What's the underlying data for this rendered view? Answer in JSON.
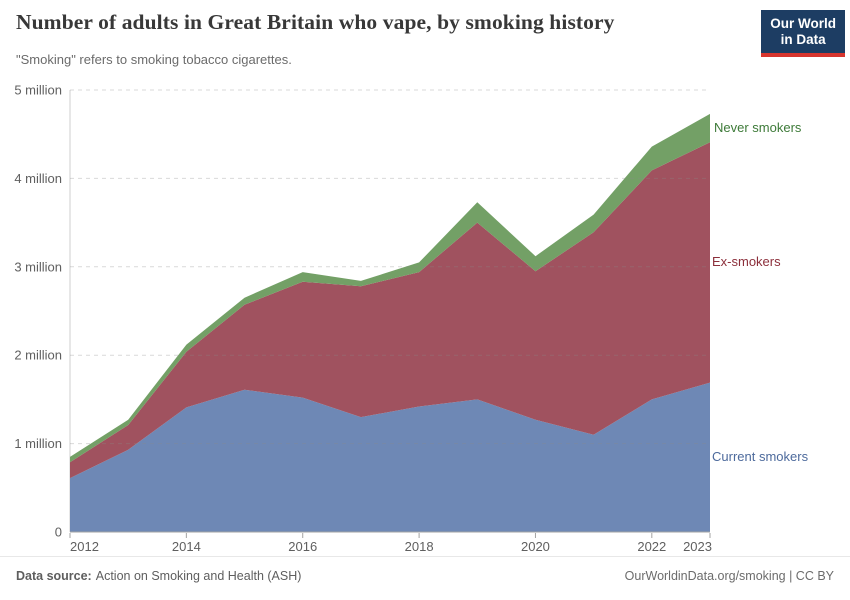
{
  "header": {
    "logo": {
      "line1": "Our World",
      "line2": "in Data"
    }
  },
  "footer": {
    "source_label": "Data source:",
    "source_value": "Action on Smoking and Health (ASH)",
    "credit": "OurWorldinData.org/smoking | CC BY"
  },
  "chart_data": {
    "type": "area",
    "stacked": true,
    "title": "Number of adults in Great Britain who vape, by smoking history",
    "subtitle": "\"Smoking\" refers to smoking tobacco cigarettes.",
    "unit": "adults (millions)",
    "x": [
      2012,
      2013,
      2014,
      2015,
      2016,
      2017,
      2018,
      2019,
      2020,
      2021,
      2022,
      2023
    ],
    "series": [
      {
        "name": "Current smokers",
        "color": "#6E88B5",
        "label_color": "#4D6A9C",
        "values": [
          0.61,
          0.93,
          1.41,
          1.61,
          1.52,
          1.3,
          1.42,
          1.5,
          1.27,
          1.1,
          1.5,
          1.69
        ]
      },
      {
        "name": "Ex-smokers",
        "color": "#A0525F",
        "label_color": "#8C2F3B",
        "values": [
          0.18,
          0.28,
          0.63,
          0.96,
          1.31,
          1.48,
          1.52,
          2.0,
          1.68,
          2.29,
          2.59,
          2.72
        ]
      },
      {
        "name": "Never smokers",
        "color": "#73A066",
        "label_color": "#3D7A38",
        "values": [
          0.06,
          0.06,
          0.08,
          0.08,
          0.11,
          0.06,
          0.11,
          0.23,
          0.17,
          0.2,
          0.27,
          0.32
        ]
      }
    ],
    "totals": [
      0.85,
      1.27,
      2.12,
      2.65,
      2.94,
      2.84,
      3.05,
      3.73,
      3.12,
      3.59,
      4.36,
      4.73
    ],
    "ylim": [
      0,
      5
    ],
    "yticks": [
      {
        "v": 0,
        "label": "0"
      },
      {
        "v": 1,
        "label": "1 million"
      },
      {
        "v": 2,
        "label": "2 million"
      },
      {
        "v": 3,
        "label": "3 million"
      },
      {
        "v": 4,
        "label": "4 million"
      },
      {
        "v": 5,
        "label": "5 million"
      }
    ],
    "xticks": [
      {
        "v": 2012,
        "label": "2012"
      },
      {
        "v": 2014,
        "label": "2014"
      },
      {
        "v": 2016,
        "label": "2016"
      },
      {
        "v": 2018,
        "label": "2018"
      },
      {
        "v": 2020,
        "label": "2020"
      },
      {
        "v": 2022,
        "label": "2022"
      },
      {
        "v": 2023,
        "label": "2023"
      }
    ],
    "grid": "horizontal-dashed",
    "legend_position": "right-inline"
  }
}
